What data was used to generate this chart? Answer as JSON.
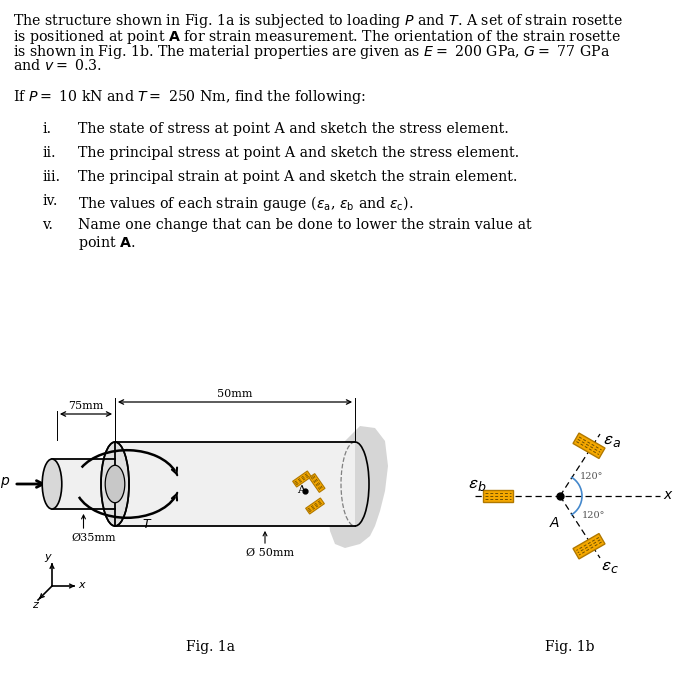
{
  "bg_color": "#ffffff",
  "text_color": "#000000",
  "line1": "The structure shown in Fig. 1a is subjected to loading $P$ and $T$. A set of strain rosette",
  "line2": "is positioned at point $\\mathbf{A}$ for strain measurement. The orientation of the strain rosette",
  "line3": "is shown in Fig. 1b. The material properties are given as $E=$ 200 GPa, $G=$ 77 GPa",
  "line4": "and $v=$ 0.3.",
  "line5": "If $P=$ 10 kN and $T=$ 250 Nm, find the following:",
  "items": [
    "The state of stress at point A and sketch the stress element.",
    "The principal stress at point A and sketch the stress element.",
    "The principal strain at point A and sketch the strain element.",
    "The values of each strain gauge ($\\varepsilon_\\mathrm{a}$, $\\varepsilon_\\mathrm{b}$ and $\\varepsilon_\\mathrm{c}$).",
    "Name one change that can be done to lower the strain value at",
    "point $\\mathbf{A}$."
  ],
  "item_labels": [
    "i.",
    "ii.",
    "iii.",
    "iv.",
    "v.",
    ""
  ],
  "fig1a_label": "Fig. 1a",
  "fig1b_label": "Fig. 1b",
  "gauge_color": "#f5a800",
  "gauge_edge": "#b07800",
  "shadow_color": "#b0b0b0",
  "cyl_fill": "#f0f0f0",
  "cyl_left_fill": "#e0e0e0",
  "shaft_fill": "#f5f5f5",
  "dim_35mm": "Ø35mm",
  "dim_50mm_dia": "Ø 50mm"
}
